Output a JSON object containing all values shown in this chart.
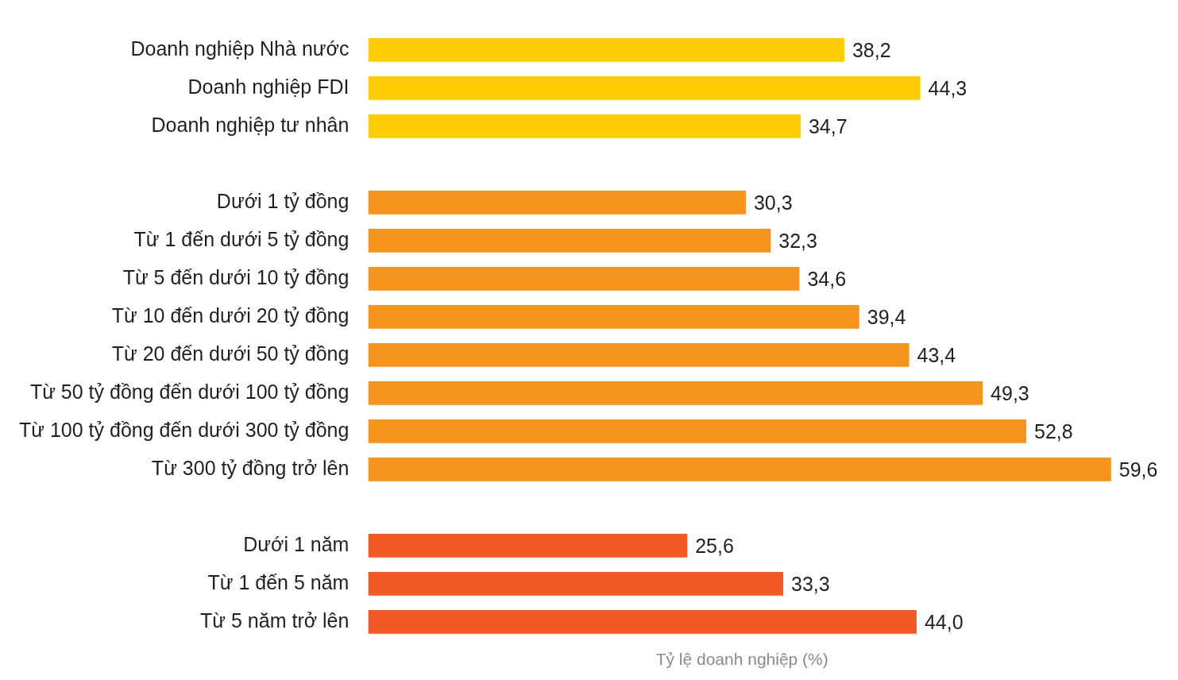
{
  "chart_data": {
    "type": "bar",
    "orientation": "horizontal",
    "xlabel": "Tỷ lệ doanh nghiệp (%)",
    "categories": [
      "Doanh nghiệp Nhà nước",
      "Doanh nghiệp FDI",
      "Doanh nghiệp tư nhân",
      null,
      "Dưới 1 tỷ đồng",
      "Từ 1 đến dưới 5 tỷ đồng",
      "Từ 5 đến dưới 10 tỷ đồng",
      "Từ 10 đến dưới 20 tỷ đồng",
      "Từ 20 đến dưới 50 tỷ đồng",
      "Từ 50 tỷ đồng đến dưới 100 tỷ đồng",
      "Từ 100 tỷ đồng đến dưới 300 tỷ đồng",
      "Từ 300 tỷ đồng trở lên",
      null,
      "Dưới 1 năm",
      "Từ 1 đến 5 năm",
      "Từ 5 năm trở lên"
    ],
    "values": [
      38.2,
      44.3,
      34.7,
      null,
      30.3,
      32.3,
      34.6,
      39.4,
      43.4,
      49.3,
      52.8,
      59.6,
      null,
      25.6,
      33.3,
      44.0
    ],
    "value_labels": [
      "38,2",
      "44,3",
      "34,7",
      null,
      "30,3",
      "32,3",
      "34,6",
      "39,4",
      "43,4",
      "49,3",
      "52,8",
      "59,6",
      null,
      "25,6",
      "33,3",
      "44,0"
    ],
    "colors": [
      "#ffcc08",
      "#ffcc08",
      "#ffcc08",
      null,
      "#f7941d",
      "#f7941d",
      "#f7941d",
      "#f7941d",
      "#f7941d",
      "#f7941d",
      "#f7941d",
      "#f7941d",
      null,
      "#f15a24",
      "#f15a24",
      "#f15a24"
    ],
    "grid": false,
    "legend": false
  }
}
